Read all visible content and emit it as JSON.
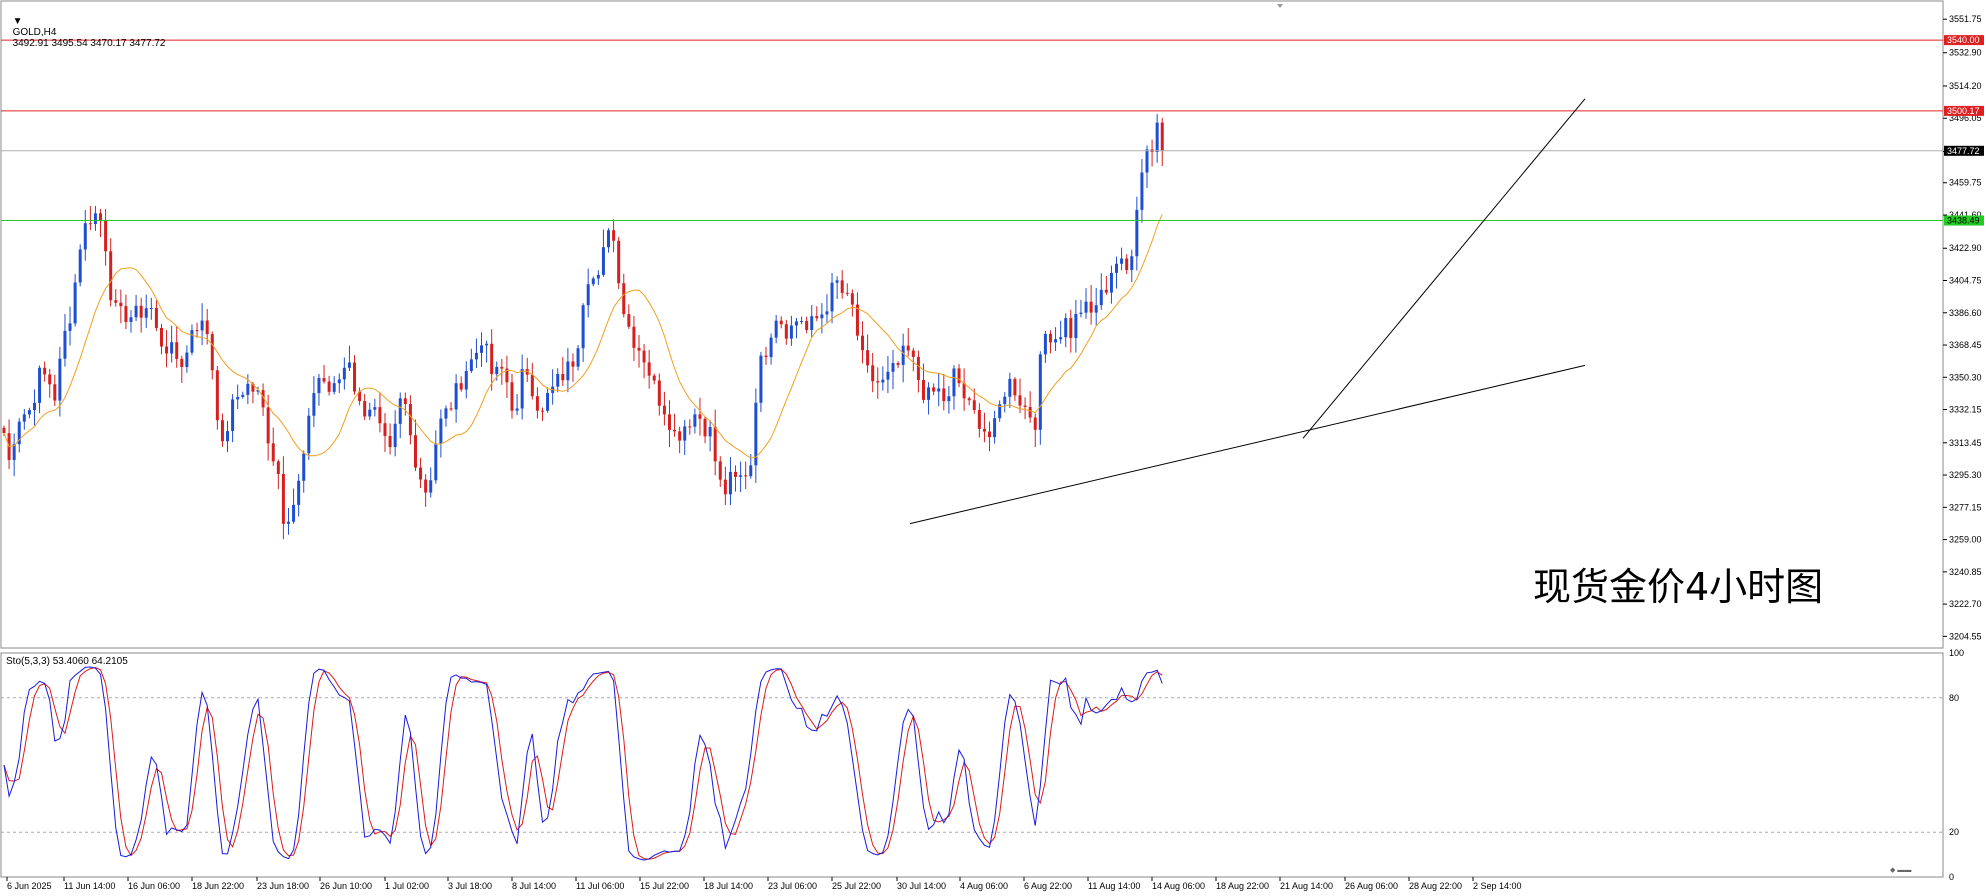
{
  "header": {
    "symbol": "GOLD,H4",
    "ohlc": "3492.91 3495.54 3470.17 3477.72"
  },
  "stoch_header": "Sto(5,3,3) 53.4060 64.2105",
  "annotation": "现货金价4小时图",
  "colors": {
    "bull": "#1f4fd1",
    "bear": "#d61f1f",
    "ma": "#f0a020",
    "resistance": "#e02020",
    "support": "#22cc22",
    "price_line": "#b0b0b0",
    "stoch_main": "#1a1adc",
    "stoch_signal": "#dc1a1a"
  },
  "chart_data": {
    "type": "candlestick",
    "ylim": [
      3198,
      3562
    ],
    "y_ticks": [
      "3551.75",
      "3532.90",
      "3514.20",
      "3496.05",
      "3477.35",
      "3459.75",
      "3441.60",
      "3422.90",
      "3404.75",
      "3386.60",
      "3368.45",
      "3350.30",
      "3332.15",
      "3313.45",
      "3295.30",
      "3277.15",
      "3259.00",
      "3240.85",
      "3222.70",
      "3204.55"
    ],
    "x_labels": [
      "6 Jun 2025",
      "11 Jun 14:00",
      "16 Jun 06:00",
      "18 Jun 22:00",
      "23 Jun 18:00",
      "26 Jun 10:00",
      "1 Jul 02:00",
      "3 Jul 18:00",
      "8 Jul 14:00",
      "11 Jul 06:00",
      "15 Jul 22:00",
      "18 Jul 14:00",
      "23 Jul 06:00",
      "25 Jul 22:00",
      "30 Jul 14:00",
      "4 Aug 06:00",
      "6 Aug 22:00",
      "11 Aug 14:00",
      "14 Aug 06:00",
      "18 Aug 22:00",
      "21 Aug 14:00",
      "26 Aug 06:00",
      "28 Aug 22:00",
      "2 Sep 14:00"
    ],
    "levels": [
      {
        "label": "3540.00",
        "value": 3540.0,
        "kind": "resistance"
      },
      {
        "label": "3500.17",
        "value": 3500.17,
        "kind": "resistance"
      },
      {
        "label": "3477.72",
        "value": 3477.72,
        "kind": "current"
      },
      {
        "label": "3438.49",
        "value": 3438.49,
        "kind": "support"
      }
    ],
    "trendlines": [
      {
        "from": [
          "30 Jul 14:00",
          3268
        ],
        "to": [
          "2 Sep 14:00+",
          3357
        ]
      },
      {
        "from": [
          "21 Aug 14:00",
          3316
        ],
        "to": [
          "2 Sep 14:00+",
          3507
        ]
      }
    ],
    "path_key": [
      [
        0,
        3338
      ],
      [
        8,
        3300
      ],
      [
        18,
        3328
      ],
      [
        30,
        3332
      ],
      [
        40,
        3352
      ],
      [
        48,
        3350
      ],
      [
        56,
        3338
      ],
      [
        62,
        3368
      ],
      [
        72,
        3390
      ],
      [
        80,
        3425
      ],
      [
        88,
        3440
      ],
      [
        95,
        3442
      ],
      [
        100,
        3440
      ],
      [
        106,
        3424
      ],
      [
        112,
        3392
      ],
      [
        118,
        3384
      ],
      [
        126,
        3386
      ],
      [
        134,
        3384
      ],
      [
        142,
        3388
      ],
      [
        150,
        3392
      ],
      [
        158,
        3372
      ],
      [
        166,
        3368
      ],
      [
        175,
        3362
      ],
      [
        185,
        3358
      ],
      [
        193,
        3382
      ],
      [
        200,
        3380
      ],
      [
        208,
        3376
      ],
      [
        214,
        3348
      ],
      [
        222,
        3308
      ],
      [
        230,
        3330
      ],
      [
        238,
        3340
      ],
      [
        246,
        3346
      ],
      [
        252,
        3344
      ],
      [
        258,
        3340
      ],
      [
        264,
        3330
      ],
      [
        270,
        3312
      ],
      [
        278,
        3298
      ],
      [
        284,
        3270
      ],
      [
        290,
        3276
      ],
      [
        296,
        3282
      ],
      [
        302,
        3300
      ],
      [
        308,
        3320
      ],
      [
        314,
        3344
      ],
      [
        320,
        3352
      ],
      [
        326,
        3346
      ],
      [
        332,
        3340
      ],
      [
        338,
        3348
      ],
      [
        344,
        3356
      ],
      [
        350,
        3362
      ],
      [
        356,
        3340
      ],
      [
        362,
        3330
      ],
      [
        368,
        3336
      ],
      [
        374,
        3332
      ],
      [
        380,
        3320
      ],
      [
        386,
        3310
      ],
      [
        392,
        3304
      ],
      [
        398,
        3334
      ],
      [
        404,
        3338
      ],
      [
        410,
        3318
      ],
      [
        416,
        3304
      ],
      [
        422,
        3292
      ],
      [
        428,
        3284
      ],
      [
        434,
        3310
      ],
      [
        440,
        3324
      ],
      [
        446,
        3330
      ],
      [
        452,
        3336
      ],
      [
        458,
        3344
      ],
      [
        464,
        3354
      ],
      [
        470,
        3358
      ],
      [
        476,
        3364
      ],
      [
        482,
        3374
      ],
      [
        488,
        3360
      ],
      [
        494,
        3348
      ],
      [
        500,
        3356
      ],
      [
        506,
        3350
      ],
      [
        512,
        3336
      ],
      [
        518,
        3328
      ],
      [
        524,
        3360
      ],
      [
        530,
        3350
      ],
      [
        536,
        3338
      ],
      [
        542,
        3328
      ],
      [
        548,
        3340
      ],
      [
        554,
        3344
      ],
      [
        560,
        3350
      ],
      [
        566,
        3354
      ],
      [
        572,
        3358
      ],
      [
        578,
        3372
      ],
      [
        584,
        3400
      ],
      [
        590,
        3412
      ],
      [
        596,
        3400
      ],
      [
        602,
        3410
      ],
      [
        606,
        3436
      ],
      [
        610,
        3438
      ],
      [
        614,
        3426
      ],
      [
        618,
        3412
      ],
      [
        622,
        3392
      ],
      [
        628,
        3380
      ],
      [
        634,
        3372
      ],
      [
        640,
        3366
      ],
      [
        646,
        3360
      ],
      [
        652,
        3348
      ],
      [
        658,
        3340
      ],
      [
        664,
        3334
      ],
      [
        670,
        3326
      ],
      [
        676,
        3316
      ],
      [
        682,
        3322
      ],
      [
        688,
        3326
      ],
      [
        694,
        3330
      ],
      [
        700,
        3328
      ],
      [
        706,
        3322
      ],
      [
        712,
        3318
      ],
      [
        716,
        3300
      ],
      [
        720,
        3290
      ],
      [
        726,
        3286
      ],
      [
        732,
        3294
      ],
      [
        738,
        3290
      ],
      [
        744,
        3298
      ],
      [
        750,
        3296
      ],
      [
        754,
        3330
      ],
      [
        758,
        3354
      ],
      [
        764,
        3362
      ],
      [
        770,
        3376
      ],
      [
        776,
        3386
      ],
      [
        782,
        3382
      ],
      [
        788,
        3376
      ],
      [
        794,
        3380
      ],
      [
        800,
        3386
      ],
      [
        806,
        3376
      ],
      [
        812,
        3380
      ],
      [
        818,
        3384
      ],
      [
        824,
        3388
      ],
      [
        830,
        3396
      ],
      [
        836,
        3404
      ],
      [
        842,
        3398
      ],
      [
        848,
        3392
      ],
      [
        854,
        3388
      ],
      [
        858,
        3372
      ],
      [
        864,
        3356
      ],
      [
        870,
        3350
      ],
      [
        876,
        3348
      ],
      [
        882,
        3346
      ],
      [
        888,
        3350
      ],
      [
        894,
        3354
      ],
      [
        900,
        3358
      ],
      [
        906,
        3366
      ],
      [
        912,
        3360
      ],
      [
        918,
        3350
      ],
      [
        924,
        3342
      ],
      [
        930,
        3338
      ],
      [
        936,
        3344
      ],
      [
        942,
        3340
      ],
      [
        948,
        3334
      ],
      [
        954,
        3352
      ],
      [
        960,
        3346
      ],
      [
        966,
        3336
      ],
      [
        972,
        3330
      ],
      [
        978,
        3328
      ],
      [
        984,
        3322
      ],
      [
        988,
        3316
      ],
      [
        994,
        3320
      ],
      [
        1000,
        3334
      ],
      [
        1006,
        3346
      ],
      [
        1012,
        3348
      ],
      [
        1018,
        3340
      ],
      [
        1024,
        3334
      ],
      [
        1030,
        3330
      ],
      [
        1036,
        3326
      ],
      [
        1042,
        3370
      ],
      [
        1048,
        3378
      ],
      [
        1054,
        3372
      ],
      [
        1060,
        3376
      ],
      [
        1066,
        3382
      ],
      [
        1072,
        3374
      ],
      [
        1078,
        3388
      ],
      [
        1084,
        3390
      ],
      [
        1090,
        3384
      ],
      [
        1096,
        3392
      ],
      [
        1102,
        3396
      ],
      [
        1108,
        3404
      ],
      [
        1114,
        3416
      ],
      [
        1120,
        3414
      ],
      [
        1126,
        3408
      ],
      [
        1132,
        3424
      ],
      [
        1136,
        3446
      ],
      [
        1140,
        3458
      ],
      [
        1144,
        3474
      ],
      [
        1148,
        3484
      ],
      [
        1152,
        3478
      ],
      [
        1156,
        3490
      ],
      [
        1160,
        3502
      ],
      [
        1163,
        3478
      ]
    ],
    "ma_offset": 12,
    "stoch": {
      "ylim": [
        0,
        100
      ],
      "levels": [
        20,
        80
      ],
      "ticks": [
        "100",
        "80",
        "20",
        "0"
      ]
    }
  }
}
